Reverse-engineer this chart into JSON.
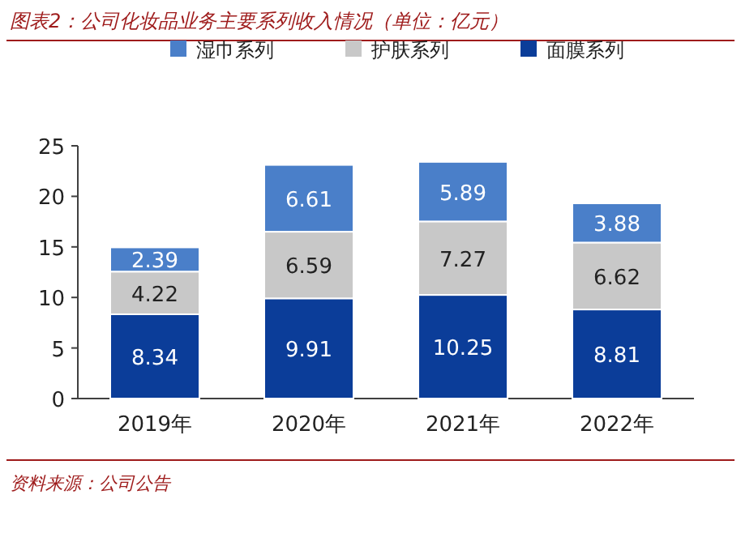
{
  "chart_data": {
    "type": "bar",
    "title": "图表2：公司化妆品业务主要系列收入情况（单位：亿元）",
    "categories": [
      "2019年",
      "2020年",
      "2021年",
      "2022年"
    ],
    "series": [
      {
        "name": "面膜系列",
        "color": "#0b3d99",
        "values": [
          8.34,
          9.91,
          10.25,
          8.81
        ]
      },
      {
        "name": "护肤系列",
        "color": "#c8c8c8",
        "values": [
          4.22,
          6.59,
          7.27,
          6.62
        ]
      },
      {
        "name": "湿巾系列",
        "color": "#4a7fc9",
        "values": [
          2.39,
          6.61,
          5.89,
          3.88
        ]
      }
    ],
    "stacked": true,
    "data_labels": true,
    "legend": "top",
    "ylim": [
      0,
      25
    ],
    "yticks": [
      0,
      5,
      10,
      15,
      20,
      25
    ],
    "annotations": [
      "资料来源：公司公告"
    ]
  }
}
